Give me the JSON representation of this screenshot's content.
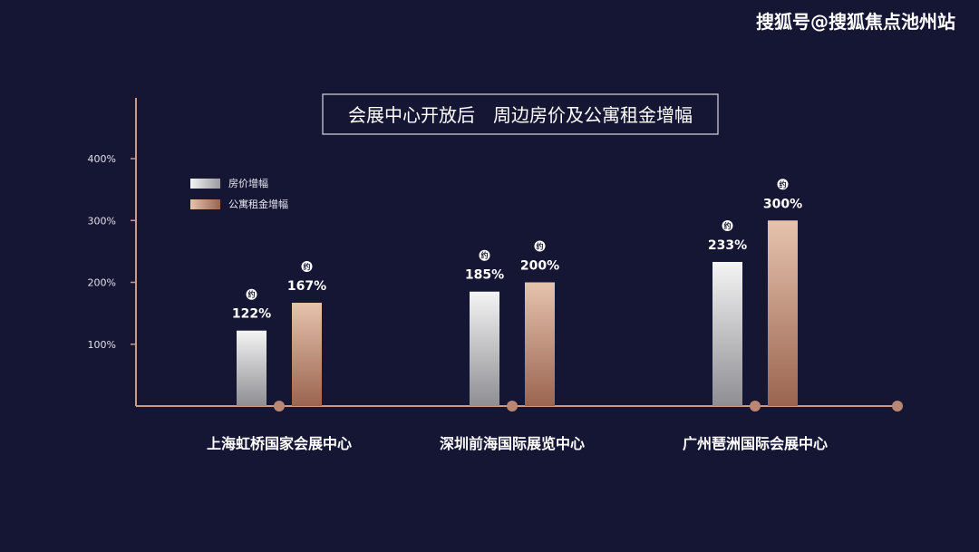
{
  "watermark": "搜狐号@搜狐焦点池州站",
  "chart_data": {
    "type": "bar",
    "title": "会展中心开放后　周边房价及公寓租金增幅",
    "categories": [
      "上海虹桥国家会展中心",
      "深圳前海国际展览中心",
      "广州琶洲国际会展中心"
    ],
    "series": [
      {
        "name": "房价增幅",
        "values": [
          122,
          185,
          233
        ],
        "labels": [
          "122%",
          "185%",
          "233%"
        ]
      },
      {
        "name": "公寓租金增幅",
        "values": [
          167,
          200,
          300
        ],
        "labels": [
          "167%",
          "200%",
          "300%"
        ]
      }
    ],
    "value_prefix": "约",
    "ylim": [
      0,
      400
    ],
    "yticks": [
      100,
      200,
      300,
      400
    ],
    "ytick_labels": [
      "100%",
      "200%",
      "300%",
      "400%"
    ],
    "legend_position": "top-left",
    "grid": false,
    "colors": {
      "background": "#151634",
      "axis": "#c99a85",
      "series_1_top": "#f4f4f4",
      "series_1_bottom": "#8e8e93",
      "series_2_top": "#e6c3ad",
      "series_2_bottom": "#9a6450",
      "text": "#ffffff"
    }
  }
}
